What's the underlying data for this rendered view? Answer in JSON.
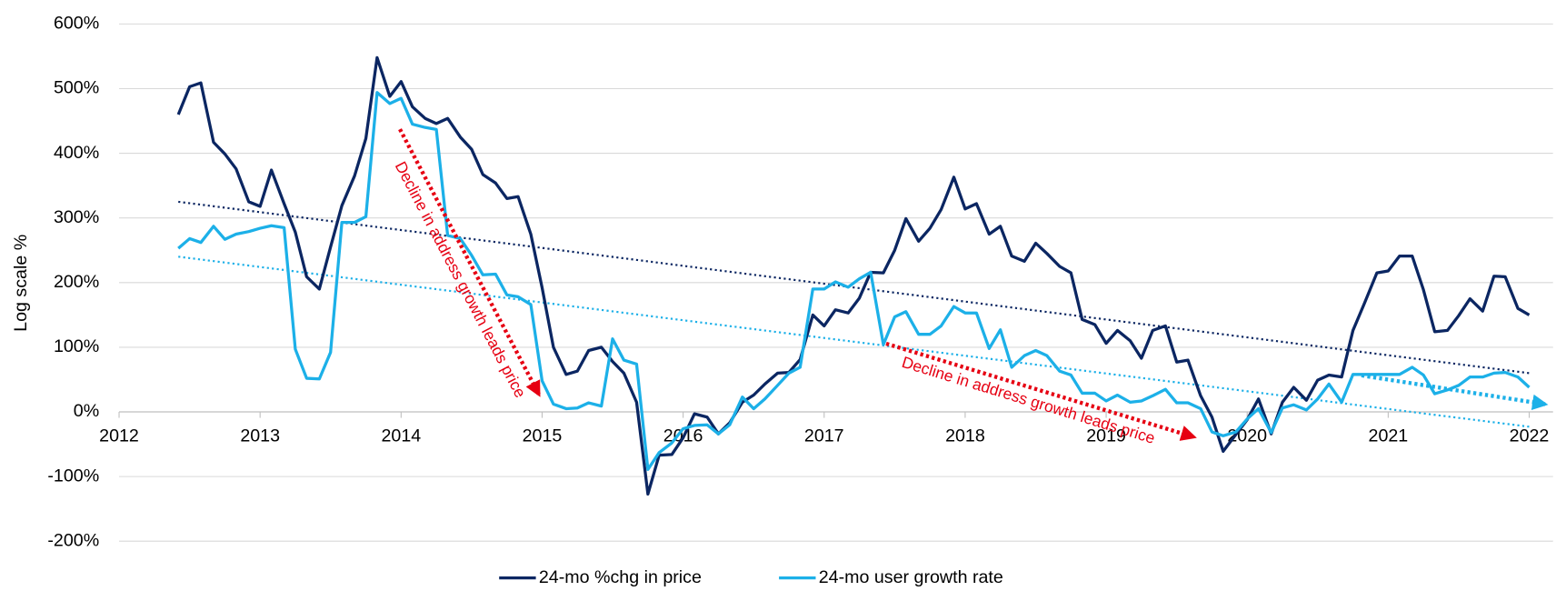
{
  "chart_data": {
    "type": "line",
    "y_label": "Log scale %",
    "x": [
      2012.42,
      2012.5,
      2012.58,
      2012.67,
      2012.75,
      2012.83,
      2012.92,
      2013.0,
      2013.08,
      2013.17,
      2013.25,
      2013.33,
      2013.42,
      2013.5,
      2013.58,
      2013.67,
      2013.75,
      2013.83,
      2013.92,
      2014.0,
      2014.08,
      2014.17,
      2014.25,
      2014.33,
      2014.42,
      2014.5,
      2014.58,
      2014.67,
      2014.75,
      2014.83,
      2014.92,
      2015.0,
      2015.08,
      2015.17,
      2015.25,
      2015.33,
      2015.42,
      2015.5,
      2015.58,
      2015.67,
      2015.75,
      2015.83,
      2015.92,
      2016.0,
      2016.08,
      2016.17,
      2016.25,
      2016.33,
      2016.42,
      2016.5,
      2016.58,
      2016.67,
      2016.75,
      2016.83,
      2016.92,
      2017.0,
      2017.08,
      2017.17,
      2017.25,
      2017.33,
      2017.42,
      2017.5,
      2017.58,
      2017.67,
      2017.75,
      2017.83,
      2017.92,
      2018.0,
      2018.08,
      2018.17,
      2018.25,
      2018.33,
      2018.42,
      2018.5,
      2018.58,
      2018.67,
      2018.75,
      2018.83,
      2018.92,
      2019.0,
      2019.08,
      2019.17,
      2019.25,
      2019.33,
      2019.42,
      2019.5,
      2019.58,
      2019.67,
      2019.75,
      2019.83,
      2019.92,
      2020.0,
      2020.08,
      2020.17,
      2020.25,
      2020.33,
      2020.42,
      2020.5,
      2020.58,
      2020.67,
      2020.75,
      2020.83,
      2020.92,
      2021.0,
      2021.08,
      2021.17,
      2021.25,
      2021.33,
      2021.42,
      2021.5,
      2021.58,
      2021.67,
      2021.75,
      2021.83,
      2021.92,
      2022.0
    ],
    "series": [
      {
        "name": "24-mo %chg in price",
        "color": "#0b2662",
        "values": [
          460,
          503,
          509,
          417,
          399,
          376,
          325,
          318,
          374,
          322,
          278,
          209,
          190,
          255,
          319,
          365,
          423,
          548,
          488,
          511,
          472,
          454,
          446,
          454,
          425,
          406,
          367,
          354,
          330,
          333,
          275,
          192,
          100,
          58,
          63,
          95,
          100,
          78,
          60,
          15,
          -127,
          -67,
          -66,
          -40,
          -3,
          -8,
          -34,
          -17,
          15,
          26,
          43,
          60,
          61,
          81,
          150,
          133,
          158,
          153,
          176,
          216,
          215,
          250,
          299,
          264,
          284,
          313,
          363,
          314,
          322,
          275,
          287,
          241,
          233,
          261,
          245,
          225,
          215,
          143,
          135,
          106,
          126,
          110,
          83,
          126,
          133,
          77,
          80,
          25,
          -8,
          -61,
          -35,
          -12,
          20,
          -34,
          15,
          38,
          18,
          49,
          57,
          54,
          126,
          167,
          215,
          218,
          241,
          241,
          189,
          124,
          126,
          149,
          175,
          156,
          210,
          209,
          160,
          150
        ]
      },
      {
        "name": "24-mo user growth rate",
        "color": "#1cb0e8",
        "values": [
          253,
          268,
          262,
          287,
          267,
          275,
          279,
          284,
          288,
          285,
          97,
          52,
          51,
          92,
          293,
          293,
          302,
          494,
          477,
          485,
          445,
          440,
          437,
          273,
          268,
          242,
          212,
          213,
          181,
          178,
          166,
          48,
          12,
          5,
          6,
          14,
          9,
          113,
          80,
          74,
          -89,
          -63,
          -48,
          -26,
          -21,
          -20,
          -34,
          -20,
          23,
          5,
          20,
          41,
          60,
          69,
          190,
          190,
          201,
          193,
          206,
          216,
          104,
          147,
          155,
          120,
          120,
          133,
          163,
          153,
          153,
          98,
          127,
          69,
          87,
          95,
          87,
          63,
          57,
          29,
          29,
          17,
          26,
          15,
          17,
          25,
          35,
          14,
          14,
          5,
          -31,
          -37,
          -31,
          -11,
          5,
          -32,
          6,
          11,
          3,
          20,
          43,
          15,
          58,
          58,
          58,
          58,
          58,
          69,
          57,
          28,
          34,
          41,
          54,
          54,
          60,
          61,
          54,
          38
        ]
      }
    ],
    "trendlines": [
      {
        "color": "#0b2662",
        "x": [
          2012.42,
          2022.0
        ],
        "values": [
          325,
          60
        ]
      },
      {
        "color": "#1cb0e8",
        "x": [
          2012.42,
          2022.0
        ],
        "values": [
          240,
          -23
        ]
      }
    ],
    "annotations": [
      {
        "text": "Decline in address growth leads price",
        "color": "#e60012"
      },
      {
        "text": "Decline in address growth leads price",
        "color": "#e60012"
      }
    ],
    "xlim": [
      2012,
      2022
    ],
    "xticks": [
      2012,
      2013,
      2014,
      2015,
      2016,
      2017,
      2018,
      2019,
      2020,
      2021,
      2022
    ],
    "ylim": [
      -200,
      600
    ],
    "yticks": [
      {
        "value": -200,
        "label": "-200%"
      },
      {
        "value": -100,
        "label": "-100%"
      },
      {
        "value": 0,
        "label": "0%"
      },
      {
        "value": 100,
        "label": "100%"
      },
      {
        "value": 200,
        "label": "200%"
      },
      {
        "value": 300,
        "label": "300%"
      },
      {
        "value": 400,
        "label": "400%"
      },
      {
        "value": 500,
        "label": "500%"
      },
      {
        "value": 600,
        "label": "600%"
      }
    ],
    "grid": true,
    "legend": "bottom"
  }
}
